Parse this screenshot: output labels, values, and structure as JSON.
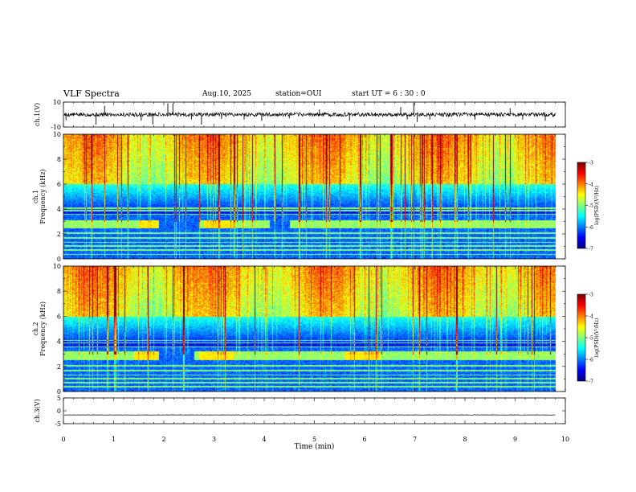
{
  "header": {
    "title": "VLF Spectra",
    "date": "Aug.10, 2025",
    "station": "station=OUI",
    "start_ut": "start UT =  6 : 30 : 0"
  },
  "chart_data": [
    {
      "type": "line",
      "name": "ch.1 waveform",
      "ylabel": "ch.1(V)",
      "ylim": [
        -10,
        10
      ],
      "yticks": [
        "10",
        "-10"
      ],
      "baseline": 0,
      "xlim": [
        0,
        10
      ],
      "xlabel": "Time (min)",
      "data_end_min": 9.8,
      "impulses": [
        {
          "x": 0.05,
          "y": -4.5
        },
        {
          "x": 0.65,
          "y": -8
        },
        {
          "x": 0.82,
          "y": 7
        },
        {
          "x": 1.55,
          "y": -5
        },
        {
          "x": 1.78,
          "y": -8
        },
        {
          "x": 2.08,
          "y": 9
        },
        {
          "x": 2.18,
          "y": 9
        },
        {
          "x": 2.55,
          "y": -4
        },
        {
          "x": 2.75,
          "y": -8
        },
        {
          "x": 3.15,
          "y": -3.5
        },
        {
          "x": 3.6,
          "y": -4
        },
        {
          "x": 3.95,
          "y": -5
        },
        {
          "x": 4.5,
          "y": -3
        },
        {
          "x": 5.1,
          "y": 4
        },
        {
          "x": 5.7,
          "y": -5
        },
        {
          "x": 6.72,
          "y": 6
        },
        {
          "x": 6.85,
          "y": -4
        },
        {
          "x": 6.98,
          "y": 9.5
        },
        {
          "x": 7.05,
          "y": -6
        },
        {
          "x": 7.3,
          "y": -4
        },
        {
          "x": 8.2,
          "y": -4
        },
        {
          "x": 8.9,
          "y": 5
        },
        {
          "x": 9.15,
          "y": -4
        },
        {
          "x": 9.6,
          "y": -5
        }
      ]
    },
    {
      "type": "heatmap",
      "name": "ch.1 spectrogram",
      "ylabel": "ch.1 Frequency (kHz)",
      "ylim": [
        0,
        10
      ],
      "yticks": [
        "0",
        "2",
        "4",
        "6",
        "8",
        "10"
      ],
      "xlim": [
        0,
        10
      ],
      "data_end_min": 9.8,
      "colorbar": {
        "label": "log(PSD)(V²/Hz)",
        "range": [
          -7,
          -3
        ],
        "ticks": [
          "-3",
          "-4",
          "-5",
          "-6",
          "-7"
        ]
      },
      "band": {
        "center_khz": 2.8,
        "width_khz": 0.6,
        "gaps_min": [
          [
            1.9,
            2.7
          ],
          [
            4.1,
            4.5
          ]
        ]
      },
      "lines_khz": [
        0.4,
        0.75,
        1.05,
        1.35,
        1.7,
        2.1,
        3.6,
        3.9,
        4.1
      ],
      "bright_patches_min": [
        [
          1.5,
          1.9
        ],
        [
          2.8,
          3.4
        ]
      ],
      "seed": 11
    },
    {
      "type": "heatmap",
      "name": "ch.2 spectrogram",
      "ylabel": "ch.2 Frequency (kHz)",
      "ylim": [
        0,
        10
      ],
      "yticks": [
        "0",
        "2",
        "4",
        "6",
        "8",
        "10"
      ],
      "xlim": [
        0,
        10
      ],
      "data_end_min": 9.8,
      "colorbar": {
        "label": "log(PSD)(V²/Hz)",
        "range": [
          -7,
          -3
        ],
        "ticks": [
          "-3",
          "-4",
          "-5",
          "-6",
          "-7"
        ]
      },
      "band": {
        "center_khz": 2.9,
        "width_khz": 0.7,
        "gaps_min": [
          [
            1.9,
            2.6
          ]
        ]
      },
      "lines_khz": [
        0.4,
        0.75,
        1.05,
        1.35,
        1.7,
        2.1,
        3.6,
        3.9,
        4.1
      ],
      "bright_patches_min": [
        [
          1.4,
          1.9
        ],
        [
          2.7,
          3.4
        ],
        [
          5.6,
          6.3
        ]
      ],
      "seed": 23
    },
    {
      "type": "line",
      "name": "ch.3 waveform",
      "ylabel": "ch.3(V)",
      "ylim": [
        -5,
        5
      ],
      "yticks": [
        "5",
        "0",
        "-5"
      ],
      "baseline": -1.6,
      "xlim": [
        0,
        10
      ],
      "data_end_min": 9.8,
      "xticks": [
        "0",
        "1",
        "2",
        "3",
        "4",
        "5",
        "6",
        "7",
        "8",
        "9",
        "10"
      ]
    }
  ]
}
